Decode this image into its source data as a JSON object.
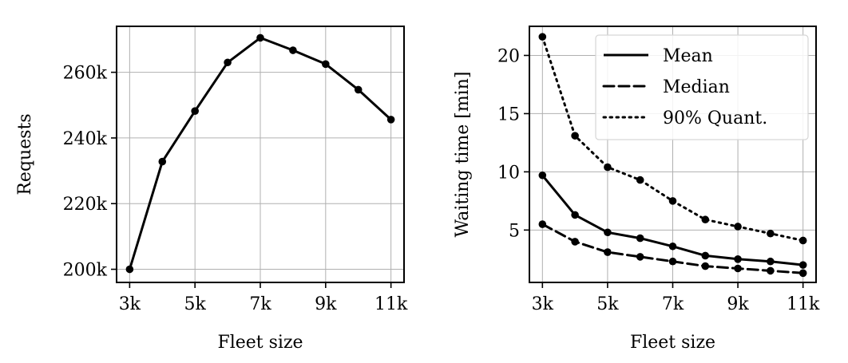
{
  "chart_data": [
    {
      "type": "line",
      "title": "",
      "xlabel": "Fleet size",
      "ylabel": "Requests",
      "x": [
        3000,
        4000,
        5000,
        6000,
        7000,
        8000,
        9000,
        10000,
        11000
      ],
      "xlim": [
        2600,
        11400
      ],
      "ylim": [
        196000,
        274000
      ],
      "xticks": [
        3000,
        5000,
        7000,
        9000,
        11000
      ],
      "xtick_labels": [
        "3k",
        "5k",
        "7k",
        "9k",
        "11k"
      ],
      "yticks": [
        200000,
        220000,
        240000,
        260000
      ],
      "ytick_labels": [
        "200k",
        "220k",
        "240k",
        "260k"
      ],
      "grid": true,
      "series": [
        {
          "name": "",
          "style": "solid",
          "color": "#000000",
          "values": [
            200000,
            232800,
            248200,
            263000,
            270500,
            266700,
            262500,
            254700,
            245600
          ]
        }
      ]
    },
    {
      "type": "line",
      "title": "",
      "xlabel": "Fleet size",
      "ylabel": "Waiting time [min]",
      "x": [
        3000,
        4000,
        5000,
        6000,
        7000,
        8000,
        9000,
        10000,
        11000
      ],
      "xlim": [
        2600,
        11400
      ],
      "ylim": [
        0.5,
        22.5
      ],
      "xticks": [
        3000,
        5000,
        7000,
        9000,
        11000
      ],
      "xtick_labels": [
        "3k",
        "5k",
        "7k",
        "9k",
        "11k"
      ],
      "yticks": [
        5,
        10,
        15,
        20
      ],
      "ytick_labels": [
        "5",
        "10",
        "15",
        "20"
      ],
      "grid": true,
      "legend": "top-right",
      "series": [
        {
          "name": "Mean",
          "style": "solid",
          "color": "#000000",
          "values": [
            9.7,
            6.3,
            4.8,
            4.3,
            3.6,
            2.8,
            2.5,
            2.3,
            2.0
          ]
        },
        {
          "name": "Median",
          "style": "dashed",
          "color": "#000000",
          "values": [
            5.5,
            4.0,
            3.1,
            2.7,
            2.3,
            1.9,
            1.7,
            1.5,
            1.3
          ]
        },
        {
          "name": "90% Quant.",
          "style": "dotted",
          "color": "#000000",
          "values": [
            21.6,
            13.1,
            10.4,
            9.3,
            7.5,
            5.9,
            5.3,
            4.7,
            4.1
          ]
        }
      ]
    }
  ]
}
